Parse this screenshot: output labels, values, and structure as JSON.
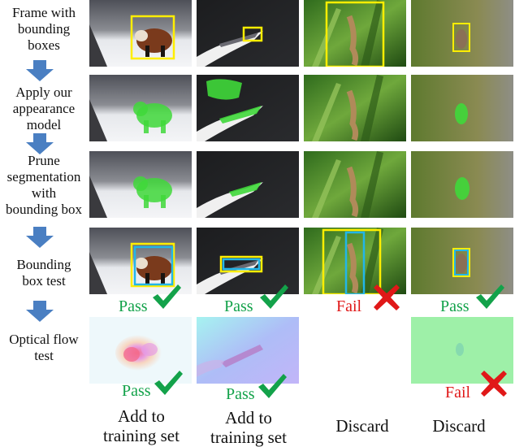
{
  "steps": [
    {
      "label": "Frame with\nbounding\nboxes"
    },
    {
      "label": "Apply our\nappearance\nmodel"
    },
    {
      "label": "Prune\nsegmentation\nwith\nbounding box"
    },
    {
      "label": "Bounding\nbox test"
    },
    {
      "label": "Optical flow\ntest"
    }
  ],
  "bbox_test": [
    "Pass",
    "Pass",
    "Fail",
    "Pass"
  ],
  "flow_test": {
    "col1": "Pass",
    "col2": "Pass",
    "col4": "Fail"
  },
  "outcomes": [
    "Add to\ntraining set",
    "Add to\ntraining set",
    "Discard",
    "Discard"
  ],
  "colors": {
    "pass": "#13a24a",
    "fail": "#e01818",
    "box_yellow": "#ffee00",
    "box_cyan": "#22b6e8",
    "arrow": "#4a7fc2",
    "mask": "#3fd83a"
  },
  "icons": [
    "down-arrow-icon",
    "check-icon",
    "cross-icon"
  ]
}
